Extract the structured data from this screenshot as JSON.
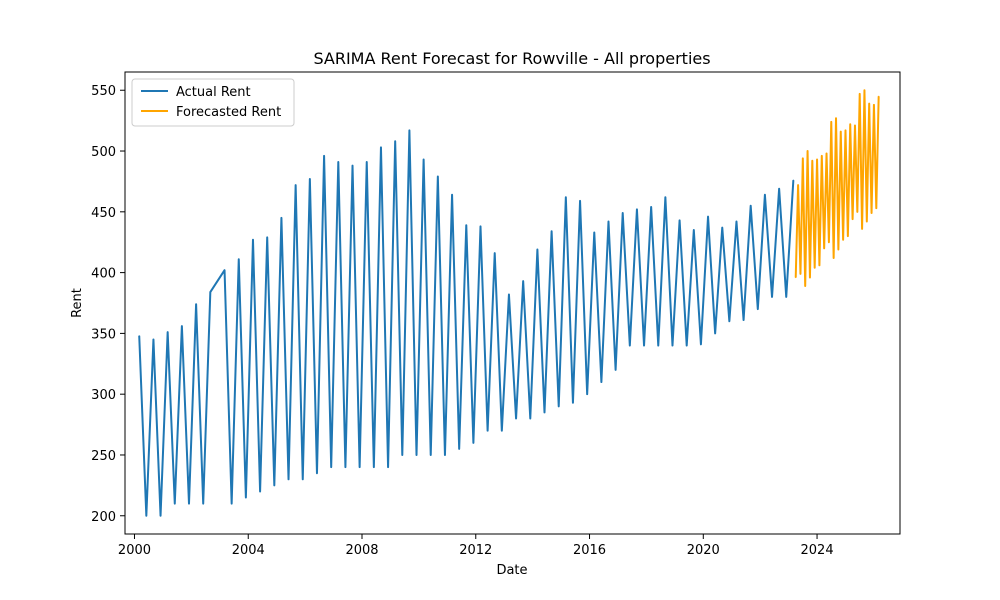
{
  "chart_data": {
    "type": "line",
    "title": "SARIMA Rent Forecast for Rowville - All properties",
    "xlabel": "Date",
    "ylabel": "Rent",
    "xlim": [
      "1999-09-01",
      "2026-12-01"
    ],
    "ylim": [
      185,
      565
    ],
    "x_ticks": [
      "2000",
      "2004",
      "2008",
      "2012",
      "2016",
      "2020",
      "2024"
    ],
    "y_ticks": [
      200,
      250,
      300,
      350,
      400,
      450,
      500,
      550
    ],
    "grid": false,
    "legend_position": "top-left",
    "series": [
      {
        "name": "Actual Rent",
        "color": "#1f77b4",
        "points": [
          [
            "2000-03-01",
            348
          ],
          [
            "2000-06-01",
            200
          ],
          [
            "2000-09-01",
            345
          ],
          [
            "2000-12-01",
            200
          ],
          [
            "2001-03-01",
            351
          ],
          [
            "2001-06-01",
            210
          ],
          [
            "2001-09-01",
            356
          ],
          [
            "2001-12-01",
            210
          ],
          [
            "2002-03-01",
            374
          ],
          [
            "2002-06-01",
            210
          ],
          [
            "2002-09-01",
            384
          ],
          [
            "2003-03-01",
            402
          ],
          [
            "2003-06-01",
            210
          ],
          [
            "2003-09-01",
            411
          ],
          [
            "2003-12-01",
            215
          ],
          [
            "2004-03-01",
            427
          ],
          [
            "2004-06-01",
            220
          ],
          [
            "2004-09-01",
            429
          ],
          [
            "2004-12-01",
            225
          ],
          [
            "2005-03-01",
            445
          ],
          [
            "2005-06-01",
            230
          ],
          [
            "2005-09-01",
            472
          ],
          [
            "2005-12-01",
            230
          ],
          [
            "2006-03-01",
            477
          ],
          [
            "2006-06-01",
            235
          ],
          [
            "2006-09-01",
            496
          ],
          [
            "2006-12-01",
            240
          ],
          [
            "2007-03-01",
            491
          ],
          [
            "2007-06-01",
            240
          ],
          [
            "2007-09-01",
            488
          ],
          [
            "2007-12-01",
            240
          ],
          [
            "2008-03-01",
            491
          ],
          [
            "2008-06-01",
            240
          ],
          [
            "2008-09-01",
            503
          ],
          [
            "2008-12-01",
            240
          ],
          [
            "2009-03-01",
            508
          ],
          [
            "2009-06-01",
            250
          ],
          [
            "2009-09-01",
            517
          ],
          [
            "2009-12-01",
            250
          ],
          [
            "2010-03-01",
            493
          ],
          [
            "2010-06-01",
            250
          ],
          [
            "2010-09-01",
            479
          ],
          [
            "2010-12-01",
            250
          ],
          [
            "2011-03-01",
            464
          ],
          [
            "2011-06-01",
            255
          ],
          [
            "2011-09-01",
            439
          ],
          [
            "2011-12-01",
            260
          ],
          [
            "2012-03-01",
            438
          ],
          [
            "2012-06-01",
            270
          ],
          [
            "2012-09-01",
            416
          ],
          [
            "2012-12-01",
            270
          ],
          [
            "2013-03-01",
            382
          ],
          [
            "2013-06-01",
            280
          ],
          [
            "2013-09-01",
            393
          ],
          [
            "2013-12-01",
            280
          ],
          [
            "2014-03-01",
            419
          ],
          [
            "2014-06-01",
            285
          ],
          [
            "2014-09-01",
            434
          ],
          [
            "2014-12-01",
            290
          ],
          [
            "2015-03-01",
            462
          ],
          [
            "2015-06-01",
            293
          ],
          [
            "2015-09-01",
            459
          ],
          [
            "2015-12-01",
            300
          ],
          [
            "2016-03-01",
            433
          ],
          [
            "2016-06-01",
            310
          ],
          [
            "2016-09-01",
            442
          ],
          [
            "2016-12-01",
            320
          ],
          [
            "2017-03-01",
            449
          ],
          [
            "2017-06-01",
            340
          ],
          [
            "2017-09-01",
            452
          ],
          [
            "2017-12-01",
            340
          ],
          [
            "2018-03-01",
            454
          ],
          [
            "2018-06-01",
            340
          ],
          [
            "2018-09-01",
            462
          ],
          [
            "2018-12-01",
            340
          ],
          [
            "2019-03-01",
            443
          ],
          [
            "2019-06-01",
            340
          ],
          [
            "2019-09-01",
            435
          ],
          [
            "2019-12-01",
            341
          ],
          [
            "2020-03-01",
            446
          ],
          [
            "2020-06-01",
            350
          ],
          [
            "2020-09-01",
            437
          ],
          [
            "2020-12-01",
            360
          ],
          [
            "2021-03-01",
            442
          ],
          [
            "2021-06-01",
            361
          ],
          [
            "2021-09-01",
            455
          ],
          [
            "2021-12-01",
            370
          ],
          [
            "2022-03-01",
            464
          ],
          [
            "2022-06-01",
            380
          ],
          [
            "2022-09-01",
            469
          ],
          [
            "2022-12-01",
            380
          ],
          [
            "2023-03-01",
            476
          ]
        ]
      },
      {
        "name": "Forecasted Rent",
        "color": "#ffa500",
        "points": [
          [
            "2023-04-01",
            396
          ],
          [
            "2023-05-01",
            472
          ],
          [
            "2023-06-01",
            399
          ],
          [
            "2023-07-01",
            494
          ],
          [
            "2023-08-01",
            389
          ],
          [
            "2023-09-01",
            500
          ],
          [
            "2023-10-01",
            396
          ],
          [
            "2023-11-01",
            492
          ],
          [
            "2023-12-01",
            404
          ],
          [
            "2024-01-01",
            493
          ],
          [
            "2024-02-01",
            406
          ],
          [
            "2024-03-01",
            496
          ],
          [
            "2024-04-01",
            420
          ],
          [
            "2024-05-01",
            498
          ],
          [
            "2024-06-01",
            425
          ],
          [
            "2024-07-01",
            524
          ],
          [
            "2024-08-01",
            412
          ],
          [
            "2024-09-01",
            527
          ],
          [
            "2024-10-01",
            419
          ],
          [
            "2024-11-01",
            516
          ],
          [
            "2024-12-01",
            427
          ],
          [
            "2025-01-01",
            517
          ],
          [
            "2025-02-01",
            430
          ],
          [
            "2025-03-01",
            522
          ],
          [
            "2025-04-01",
            444
          ],
          [
            "2025-05-01",
            521
          ],
          [
            "2025-06-01",
            450
          ],
          [
            "2025-07-01",
            547
          ],
          [
            "2025-08-01",
            436
          ],
          [
            "2025-09-01",
            550
          ],
          [
            "2025-10-01",
            442
          ],
          [
            "2025-11-01",
            539
          ],
          [
            "2025-12-01",
            449
          ],
          [
            "2026-01-01",
            538
          ],
          [
            "2026-02-01",
            453
          ],
          [
            "2026-03-01",
            545
          ]
        ]
      }
    ]
  }
}
